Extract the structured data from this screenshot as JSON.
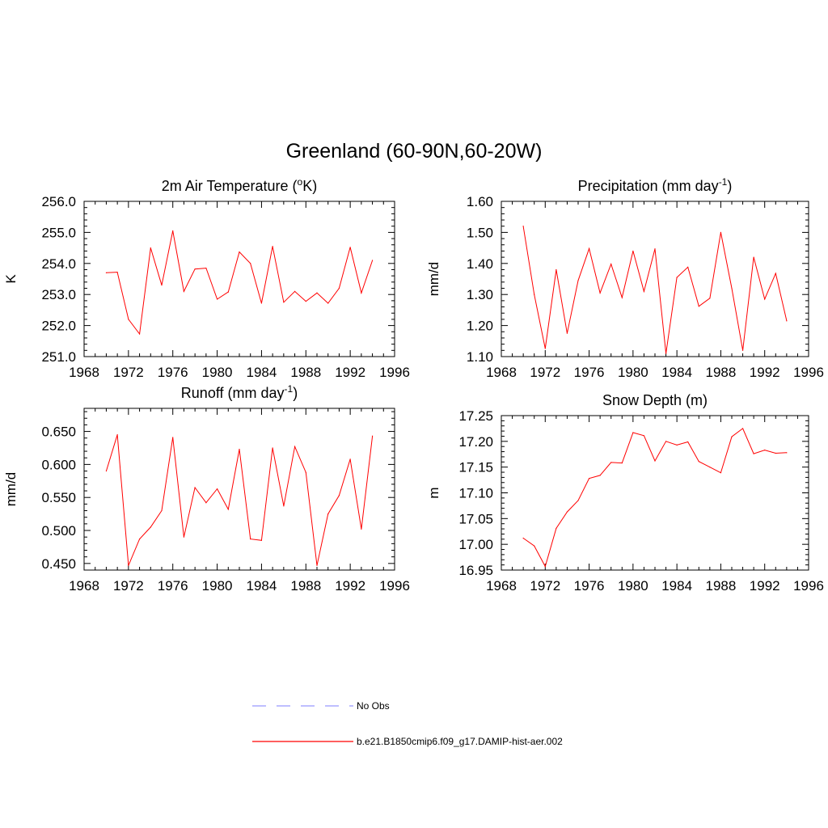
{
  "figure": {
    "title": "Greenland (60-90N,60-20W)",
    "legend": [
      {
        "label": "No Obs",
        "style": "dashed",
        "color": "#9999ff"
      },
      {
        "label": "b.e21.B1850cmip6.f09_g17.DAMIP-hist-aer.002",
        "style": "solid",
        "color": "#ff0000"
      }
    ]
  },
  "chart_data": [
    {
      "type": "line",
      "title": "2m Air Temperature (",
      "title_sup": "o",
      "title_after": "K)",
      "xlabel": "",
      "ylabel": "K",
      "xlim": [
        1968,
        1996
      ],
      "ylim": [
        251.0,
        256.0
      ],
      "xticks": [
        1968,
        1972,
        1976,
        1980,
        1984,
        1988,
        1992,
        1996
      ],
      "yticks": [
        "251.0",
        "252.0",
        "253.0",
        "254.0",
        "255.0",
        "256.0"
      ],
      "x": [
        1970,
        1971,
        1972,
        1973,
        1974,
        1975,
        1976,
        1977,
        1978,
        1979,
        1980,
        1981,
        1982,
        1983,
        1984,
        1985,
        1986,
        1987,
        1988,
        1989,
        1990,
        1991,
        1992,
        1993,
        1994
      ],
      "series": [
        {
          "values": [
            253.7,
            253.72,
            252.2,
            251.73,
            254.5,
            253.3,
            255.05,
            253.1,
            253.82,
            253.85,
            252.85,
            253.08,
            254.37,
            254.0,
            252.72,
            254.55,
            252.75,
            253.1,
            252.78,
            253.05,
            252.72,
            253.2,
            254.52,
            253.05,
            254.1
          ],
          "color": "#ff0000"
        }
      ]
    },
    {
      "type": "line",
      "title": "Precipitation (mm day",
      "title_sup": "-1",
      "title_after": ")",
      "xlabel": "",
      "ylabel": "mm/d",
      "xlim": [
        1968,
        1996
      ],
      "ylim": [
        1.1,
        1.6
      ],
      "xticks": [
        1968,
        1972,
        1976,
        1980,
        1984,
        1988,
        1992,
        1996
      ],
      "yticks": [
        "1.10",
        "1.20",
        "1.30",
        "1.40",
        "1.50",
        "1.60"
      ],
      "x": [
        1970,
        1971,
        1972,
        1973,
        1974,
        1975,
        1976,
        1977,
        1978,
        1979,
        1980,
        1981,
        1982,
        1983,
        1984,
        1985,
        1986,
        1987,
        1988,
        1989,
        1990,
        1991,
        1992,
        1993,
        1994
      ],
      "series": [
        {
          "values": [
            1.52,
            1.3,
            1.126,
            1.38,
            1.175,
            1.345,
            1.448,
            1.305,
            1.398,
            1.29,
            1.44,
            1.31,
            1.447,
            1.11,
            1.355,
            1.388,
            1.262,
            1.288,
            1.5,
            1.32,
            1.12,
            1.42,
            1.285,
            1.368,
            1.215
          ],
          "color": "#ff0000"
        }
      ]
    },
    {
      "type": "line",
      "title": "Runoff (mm day",
      "title_sup": "-1",
      "title_after": ")",
      "xlabel": "",
      "ylabel": "mm/d",
      "xlim": [
        1968,
        1996
      ],
      "ylim": [
        0.44,
        0.685
      ],
      "xticks": [
        1968,
        1972,
        1976,
        1980,
        1984,
        1988,
        1992,
        1996
      ],
      "yticks": [
        "0.450",
        "0.500",
        "0.550",
        "0.600",
        "0.650"
      ],
      "x": [
        1970,
        1971,
        1972,
        1973,
        1974,
        1975,
        1976,
        1977,
        1978,
        1979,
        1980,
        1981,
        1982,
        1983,
        1984,
        1985,
        1986,
        1987,
        1988,
        1989,
        1990,
        1991,
        1992,
        1993,
        1994
      ],
      "series": [
        {
          "values": [
            0.59,
            0.645,
            0.447,
            0.487,
            0.505,
            0.53,
            0.641,
            0.49,
            0.565,
            0.542,
            0.563,
            0.532,
            0.623,
            0.487,
            0.485,
            0.625,
            0.537,
            0.627,
            0.588,
            0.447,
            0.525,
            0.553,
            0.608,
            0.502,
            0.643
          ],
          "color": "#ff0000"
        }
      ]
    },
    {
      "type": "line",
      "title": "Snow Depth (m)",
      "title_sup": "",
      "title_after": "",
      "xlabel": "",
      "ylabel": "m",
      "xlim": [
        1968,
        1996
      ],
      "ylim": [
        16.95,
        17.25
      ],
      "xticks": [
        1968,
        1972,
        1976,
        1980,
        1984,
        1988,
        1992,
        1996
      ],
      "yticks": [
        "16.95",
        "17.00",
        "17.05",
        "17.10",
        "17.15",
        "17.20",
        "17.25"
      ],
      "x": [
        1970,
        1971,
        1972,
        1973,
        1974,
        1975,
        1976,
        1977,
        1978,
        1979,
        1980,
        1981,
        1982,
        1983,
        1984,
        1985,
        1986,
        1987,
        1988,
        1989,
        1990,
        1991,
        1992,
        1993,
        1994
      ],
      "series": [
        {
          "values": [
            17.012,
            16.997,
            16.957,
            17.031,
            17.063,
            17.085,
            17.128,
            17.134,
            17.159,
            17.158,
            17.217,
            17.211,
            17.162,
            17.2,
            17.193,
            17.199,
            17.161,
            17.15,
            17.139,
            17.209,
            17.225,
            17.176,
            17.183,
            17.177,
            17.178
          ],
          "color": "#ff0000"
        }
      ]
    }
  ]
}
